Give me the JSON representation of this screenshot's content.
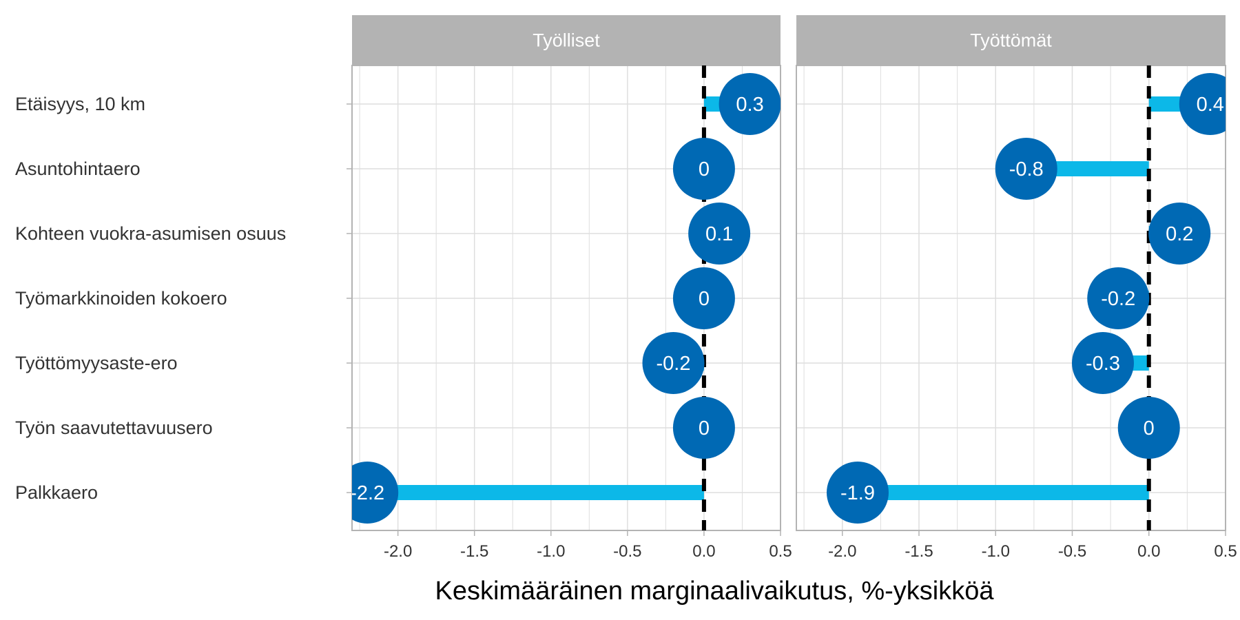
{
  "chart_data": {
    "type": "lollipop",
    "xlabel": "Keskimääräinen marginaalivaikutus, %-yksikköä",
    "xlim": [
      -2.3,
      0.5
    ],
    "xticks": [
      "-2.0",
      "-1.5",
      "-1.0",
      "-0.5",
      "0.0",
      "0.5"
    ],
    "xtick_values": [
      -2.0,
      -1.5,
      -1.0,
      -0.5,
      0.0,
      0.5
    ],
    "reference_line": 0,
    "categories": [
      "Etäisyys, 10 km",
      "Asuntohintaero",
      "Kohteen vuokra-asumisen osuus",
      "Työmarkkinoiden kokoero",
      "Työttömyysaste-ero",
      "Työn saavutettavuusero",
      "Palkkaero"
    ],
    "panels": [
      {
        "name": "Työlliset",
        "values": [
          0.3,
          0,
          0.1,
          0,
          -0.2,
          0,
          -2.2
        ],
        "labels": [
          "0.3",
          "0",
          "0.1",
          "0",
          "-0.2",
          "0",
          "-2.2"
        ]
      },
      {
        "name": "Työttömät",
        "values": [
          0.4,
          -0.8,
          0.2,
          -0.2,
          -0.3,
          0,
          -1.9
        ],
        "labels": [
          "0.4",
          "-0.8",
          "0.2",
          "-0.2",
          "-0.3",
          "0",
          "-1.9"
        ]
      }
    ],
    "grid": true,
    "colors": {
      "segment": "#0cb8e8",
      "dot": "#0069b4",
      "dot_text": "#ffffff",
      "strip": "#b3b3b3",
      "grid": "#dedede",
      "reference": "#000000"
    }
  }
}
